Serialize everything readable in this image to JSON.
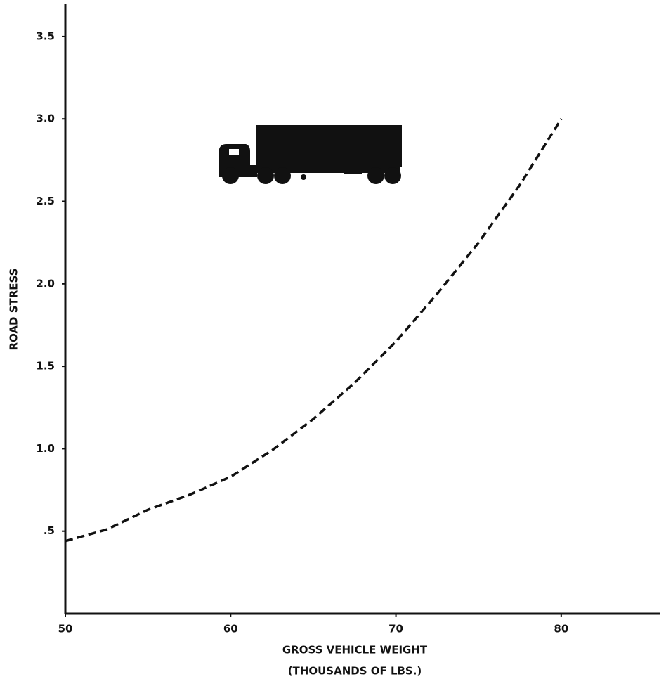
{
  "chart_data": {
    "type": "line",
    "ylabel": "ROAD STRESS",
    "xlabel": "GROSS VEHICLE WEIGHT",
    "xlabel_note": "(THOUSANDS OF LBS.)",
    "x": [
      50,
      52.5,
      55,
      57.5,
      60,
      62.5,
      65,
      67.5,
      70,
      72.5,
      75,
      77.5,
      80
    ],
    "values": [
      0.44,
      0.51,
      0.63,
      0.72,
      0.83,
      0.99,
      1.18,
      1.4,
      1.65,
      1.94,
      2.25,
      2.6,
      3.0
    ],
    "color": "#111111",
    "dashed": true,
    "xlim": [
      50,
      86
    ],
    "ylim": [
      0,
      3.7
    ],
    "xticks": [
      50,
      60,
      70,
      80
    ],
    "yticks": [
      {
        "value": 0.5,
        "label": ".5"
      },
      {
        "value": 1,
        "label": "1.0"
      },
      1.5,
      {
        "value": 2,
        "label": "2.0"
      },
      2.5,
      {
        "value": 3,
        "label": "3.0"
      },
      3.5
    ],
    "grid": false
  }
}
